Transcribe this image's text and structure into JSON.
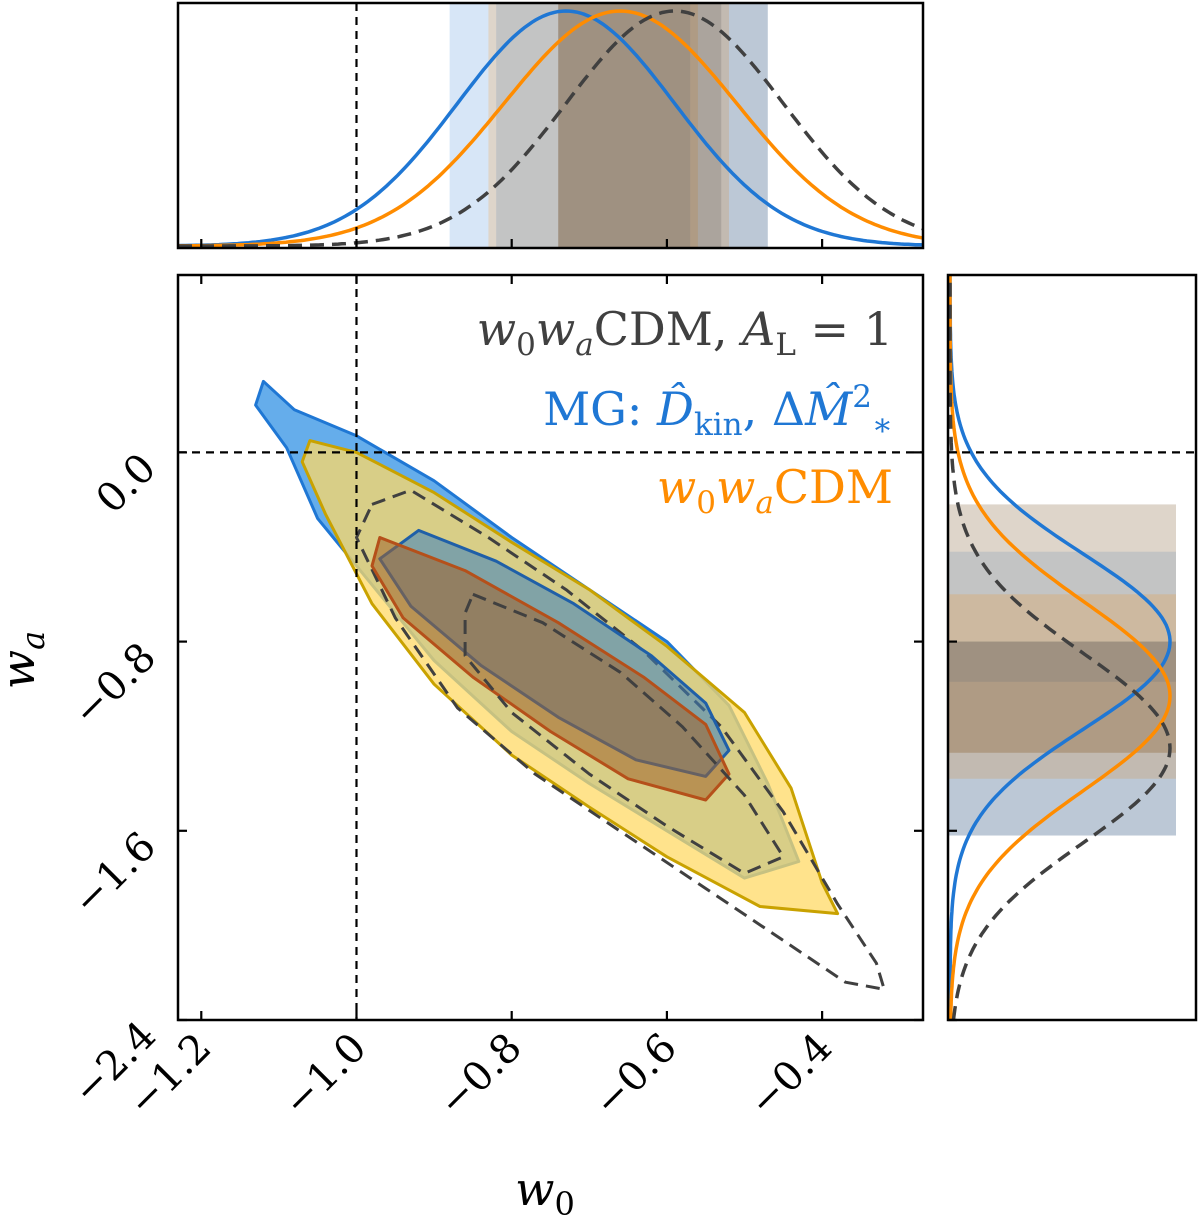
{
  "chart_data": {
    "type": "triangle",
    "xlabel": "w",
    "xlabel_sub": "0",
    "ylabel": "w",
    "ylabel_sub": "a",
    "xlim": [
      -1.23,
      -0.27
    ],
    "ylim": [
      -2.4,
      0.75
    ],
    "xticks": [
      "−1.2",
      "−1.0",
      "−0.8",
      "−0.6",
      "−0.4"
    ],
    "yticks": [
      "−2.4",
      "−1.6",
      "−0.8",
      "0.0"
    ],
    "xtick_values": [
      -1.2,
      -1.0,
      -0.8,
      -0.6,
      -0.4
    ],
    "ytick_values": [
      -2.4,
      -1.6,
      -0.8,
      0.0
    ],
    "reference_lines": {
      "w0": -1.0,
      "wa": 0.0
    },
    "legend": {
      "placement": "top-right",
      "entries": [
        {
          "parts": [
            {
              "t": "w",
              "i": true
            },
            {
              "t": "0",
              "sub": true
            },
            {
              "t": "w",
              "i": true
            },
            {
              "t": "a",
              "sub": true,
              "i": true
            },
            {
              "t": "CDM, "
            },
            {
              "t": "A",
              "i": true
            },
            {
              "t": "L",
              "sub": true
            },
            {
              "t": " = 1"
            }
          ],
          "color": "#404040"
        },
        {
          "parts": [
            {
              "t": "MG: "
            },
            {
              "t": "D̂",
              "i": true
            },
            {
              "t": "kin",
              "sub": true
            },
            {
              "t": ", Δ"
            },
            {
              "t": "M̂",
              "i": true
            },
            {
              "t": "2",
              "sup": true
            },
            {
              "t": "∗",
              "sub": true
            }
          ],
          "color": "#1f77d4"
        },
        {
          "parts": [
            {
              "t": "w",
              "i": true
            },
            {
              "t": "0",
              "sub": true
            },
            {
              "t": "w",
              "i": true
            },
            {
              "t": "a",
              "sub": true,
              "i": true
            },
            {
              "t": "CDM"
            }
          ],
          "color": "#ff8c00"
        }
      ]
    },
    "series": [
      {
        "name": "MG: D̂kin, ΔM̂²∗",
        "color": "#1f77d4",
        "fill": "#4a9fe8",
        "line_style": "solid",
        "w0_mean": -0.73,
        "w0_sigma": 0.14,
        "w0_ci68": [
          -0.82,
          -0.57
        ],
        "w0_ci95": [
          -0.88,
          -0.47
        ],
        "wa_mean": -0.8,
        "wa_sigma": 0.37,
        "wa_ci68": [
          -0.97,
          -0.42
        ],
        "wa_ci95": [
          -1.62,
          -0.22
        ],
        "contour_68": [
          [
            -0.92,
            -0.33
          ],
          [
            -0.82,
            -0.46
          ],
          [
            -0.72,
            -0.64
          ],
          [
            -0.62,
            -0.86
          ],
          [
            -0.55,
            -1.06
          ],
          [
            -0.52,
            -1.26
          ],
          [
            -0.55,
            -1.37
          ],
          [
            -0.64,
            -1.3
          ],
          [
            -0.74,
            -1.12
          ],
          [
            -0.84,
            -0.9
          ],
          [
            -0.93,
            -0.65
          ],
          [
            -0.97,
            -0.45
          ]
        ],
        "contour_95": [
          [
            -1.12,
            0.3
          ],
          [
            -1.08,
            0.18
          ],
          [
            -1.0,
            0.07
          ],
          [
            -0.9,
            -0.12
          ],
          [
            -0.8,
            -0.36
          ],
          [
            -0.7,
            -0.58
          ],
          [
            -0.6,
            -0.8
          ],
          [
            -0.52,
            -1.07
          ],
          [
            -0.47,
            -1.4
          ],
          [
            -0.43,
            -1.73
          ],
          [
            -0.5,
            -1.8
          ],
          [
            -0.6,
            -1.6
          ],
          [
            -0.7,
            -1.4
          ],
          [
            -0.8,
            -1.18
          ],
          [
            -0.9,
            -0.88
          ],
          [
            -0.98,
            -0.56
          ],
          [
            -1.05,
            -0.28
          ],
          [
            -1.09,
            0.02
          ],
          [
            -1.13,
            0.2
          ]
        ]
      },
      {
        "name": "w0waCDM",
        "color": "#ff8c00",
        "fill": "#ffd966",
        "line_style": "solid",
        "w0_mean": -0.66,
        "w0_sigma": 0.15,
        "w0_ci68": [
          -0.74,
          -0.56
        ],
        "w0_ci95": [
          -0.83,
          -0.52
        ],
        "wa_mean": -1.03,
        "wa_sigma": 0.4,
        "wa_ci68": [
          -1.27,
          -0.6
        ],
        "wa_ci95": [
          -1.38,
          -0.22
        ],
        "contour_68": [
          [
            -0.97,
            -0.36
          ],
          [
            -0.86,
            -0.5
          ],
          [
            -0.74,
            -0.72
          ],
          [
            -0.63,
            -0.95
          ],
          [
            -0.55,
            -1.15
          ],
          [
            -0.52,
            -1.36
          ],
          [
            -0.55,
            -1.47
          ],
          [
            -0.65,
            -1.38
          ],
          [
            -0.75,
            -1.18
          ],
          [
            -0.85,
            -0.95
          ],
          [
            -0.94,
            -0.7
          ],
          [
            -0.98,
            -0.48
          ]
        ],
        "contour_95": [
          [
            -1.06,
            0.05
          ],
          [
            -1.0,
            0.0
          ],
          [
            -0.9,
            -0.17
          ],
          [
            -0.8,
            -0.38
          ],
          [
            -0.7,
            -0.58
          ],
          [
            -0.6,
            -0.82
          ],
          [
            -0.5,
            -1.1
          ],
          [
            -0.44,
            -1.42
          ],
          [
            -0.4,
            -1.82
          ],
          [
            -0.38,
            -1.95
          ],
          [
            -0.48,
            -1.92
          ],
          [
            -0.6,
            -1.71
          ],
          [
            -0.7,
            -1.5
          ],
          [
            -0.8,
            -1.28
          ],
          [
            -0.9,
            -0.98
          ],
          [
            -0.98,
            -0.64
          ],
          [
            -1.04,
            -0.26
          ],
          [
            -1.07,
            -0.04
          ]
        ]
      },
      {
        "name": "w0waCDM, AL = 1",
        "color": "#404040",
        "fill": "#999999",
        "line_style": "dashed",
        "w0_mean": -0.59,
        "w0_sigma": 0.14,
        "w0_ci68": [
          -0.74,
          -0.53
        ],
        "w0_ci95": [
          -0.74,
          -0.47
        ],
        "wa_mean": -1.25,
        "wa_sigma": 0.4,
        "wa_ci68": [
          -1.27,
          -0.8
        ],
        "wa_ci95": [
          -1.62,
          -0.8
        ],
        "contour_68": [
          [
            -0.85,
            -0.6
          ],
          [
            -0.76,
            -0.72
          ],
          [
            -0.66,
            -0.93
          ],
          [
            -0.58,
            -1.16
          ],
          [
            -0.5,
            -1.45
          ],
          [
            -0.45,
            -1.71
          ],
          [
            -0.5,
            -1.78
          ],
          [
            -0.6,
            -1.58
          ],
          [
            -0.7,
            -1.36
          ],
          [
            -0.8,
            -1.1
          ],
          [
            -0.86,
            -0.86
          ],
          [
            -0.86,
            -0.68
          ]
        ],
        "contour_95": [
          [
            -0.98,
            -0.22
          ],
          [
            -0.93,
            -0.16
          ],
          [
            -0.83,
            -0.36
          ],
          [
            -0.73,
            -0.58
          ],
          [
            -0.63,
            -0.84
          ],
          [
            -0.53,
            -1.16
          ],
          [
            -0.45,
            -1.52
          ],
          [
            -0.38,
            -1.91
          ],
          [
            -0.33,
            -2.16
          ],
          [
            -0.32,
            -2.27
          ],
          [
            -0.37,
            -2.24
          ],
          [
            -0.47,
            -2.02
          ],
          [
            -0.57,
            -1.8
          ],
          [
            -0.67,
            -1.58
          ],
          [
            -0.77,
            -1.36
          ],
          [
            -0.87,
            -1.08
          ],
          [
            -0.95,
            -0.7
          ],
          [
            -1.0,
            -0.36
          ]
        ]
      }
    ]
  }
}
